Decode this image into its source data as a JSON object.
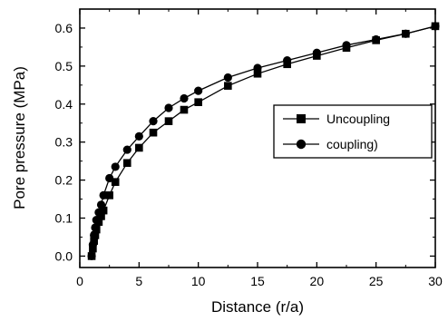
{
  "chart_data": {
    "type": "line",
    "title": "",
    "xlabel": "Distance (r/a)",
    "ylabel": "Pore pressure (MPa)",
    "xlim": [
      0,
      30
    ],
    "ylim": [
      -0.03,
      0.65
    ],
    "x_ticks": [
      0,
      5,
      10,
      15,
      20,
      25,
      30
    ],
    "x_tick_labels": [
      "0",
      "5",
      "10",
      "15",
      "20",
      "25",
      "30"
    ],
    "y_ticks": [
      0.0,
      0.1,
      0.2,
      0.3,
      0.4,
      0.5,
      0.6
    ],
    "y_tick_labels": [
      "0.0",
      "0.1",
      "0.2",
      "0.3",
      "0.4",
      "0.5",
      "0.6"
    ],
    "grid": false,
    "legend_position": "right",
    "series": [
      {
        "name": "Uncoupling",
        "marker": "square",
        "color": "#000000",
        "x": [
          1.0,
          1.1,
          1.2,
          1.3,
          1.4,
          1.6,
          1.8,
          2.0,
          2.5,
          3.0,
          4.0,
          5.0,
          6.2,
          7.5,
          8.8,
          10.0,
          12.5,
          15.0,
          17.5,
          20.0,
          22.5,
          25.0,
          27.5,
          30.0
        ],
        "y": [
          0.0,
          0.02,
          0.04,
          0.055,
          0.07,
          0.09,
          0.105,
          0.12,
          0.16,
          0.195,
          0.245,
          0.285,
          0.325,
          0.355,
          0.385,
          0.405,
          0.448,
          0.48,
          0.505,
          0.527,
          0.548,
          0.568,
          0.585,
          0.605
        ]
      },
      {
        "name": "coupling)",
        "marker": "circle",
        "color": "#000000",
        "x": [
          1.0,
          1.1,
          1.2,
          1.3,
          1.4,
          1.6,
          1.8,
          2.0,
          2.5,
          3.0,
          4.0,
          5.0,
          6.2,
          7.5,
          8.8,
          10.0,
          12.5,
          15.0,
          17.5,
          20.0,
          22.5,
          25.0,
          27.5,
          30.0
        ],
        "y": [
          0.0,
          0.03,
          0.055,
          0.075,
          0.095,
          0.115,
          0.135,
          0.16,
          0.205,
          0.235,
          0.28,
          0.315,
          0.355,
          0.39,
          0.415,
          0.435,
          0.47,
          0.495,
          0.515,
          0.535,
          0.555,
          0.57,
          0.585,
          0.605
        ]
      }
    ]
  }
}
